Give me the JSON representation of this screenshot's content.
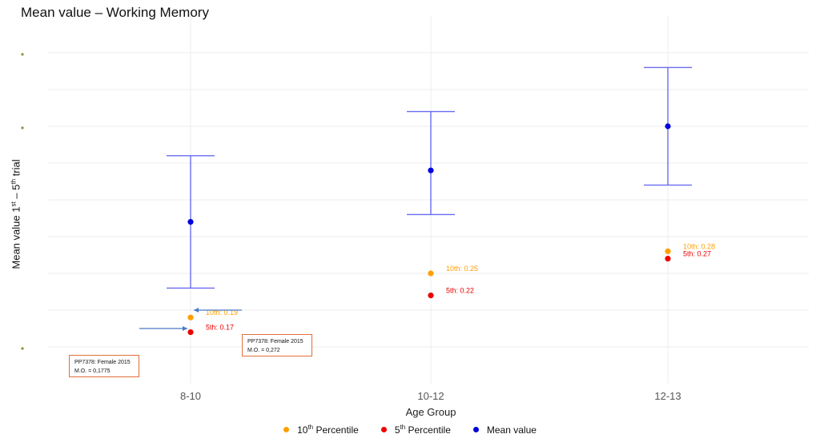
{
  "chart_data": {
    "type": "scatter",
    "title": "Mean value – Working Memory",
    "xlabel": "Age Group",
    "ylabel": {
      "prefix": "Mean value 1",
      "sup1": "st",
      "mid": " – 5",
      "sup2": "th",
      "suffix": " trial"
    },
    "categories": [
      "8-10",
      "10-12",
      "12-13"
    ],
    "ylim": [
      0.1,
      0.6
    ],
    "y_ticks": [
      0.15,
      0.2,
      0.25,
      0.3,
      0.35,
      0.4,
      0.45,
      0.5,
      0.55
    ],
    "grid": true,
    "legend_position": "bottom",
    "series": [
      {
        "name": "10th Percentile",
        "legend": {
          "main": "10",
          "sup": "th",
          "rest": " Percentile"
        },
        "color": "#ff9f00",
        "values": [
          0.19,
          0.25,
          0.28
        ],
        "labels": [
          "10th: 0.19",
          "10th: 0.25",
          "10th: 0.28"
        ]
      },
      {
        "name": "5th Percentile",
        "legend": {
          "main": "5",
          "sup": "th",
          "rest": " Percentile"
        },
        "color": "#ee0000",
        "values": [
          0.17,
          0.22,
          0.27
        ],
        "labels": [
          "5th: 0.17",
          "5th: 0.22",
          "5th: 0.27"
        ]
      },
      {
        "name": "Mean value",
        "legend": {
          "main": "Mean value",
          "sup": "",
          "rest": ""
        },
        "color": "#0000dd",
        "values": [
          0.32,
          0.39,
          0.45
        ],
        "error_low": [
          0.23,
          0.33,
          0.37
        ],
        "error_high": [
          0.41,
          0.47,
          0.53
        ]
      }
    ],
    "annotations": [
      {
        "line1": "PP7378: Female 2015",
        "line2": "M.O. = 0,272",
        "category": "8-10",
        "value": 0.2
      },
      {
        "line1": "PP7378: Female 2015",
        "line2": "M.O. = 0,1775",
        "category": "8-10",
        "value": 0.175
      }
    ],
    "error_bar_color": "#6a6cf0"
  }
}
